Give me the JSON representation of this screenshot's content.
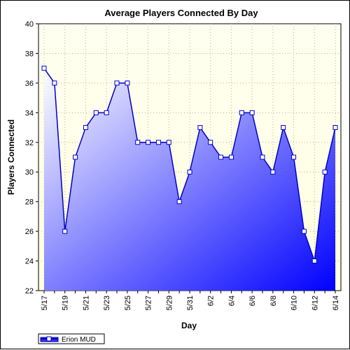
{
  "chart_data": {
    "type": "area",
    "title": "Average Players Connected By Day",
    "xlabel": "Day",
    "ylabel": "Players Connected",
    "ylim": [
      22,
      40
    ],
    "yticks": [
      22,
      24,
      26,
      28,
      30,
      32,
      34,
      36,
      38,
      40
    ],
    "x": [
      "5/17",
      "5/18",
      "5/19",
      "5/20",
      "5/21",
      "5/22",
      "5/23",
      "5/24",
      "5/25",
      "5/26",
      "5/27",
      "5/28",
      "5/29",
      "5/30",
      "5/31",
      "6/1",
      "6/2",
      "6/3",
      "6/4",
      "6/5",
      "6/6",
      "6/7",
      "6/8",
      "6/9",
      "6/10",
      "6/11",
      "6/12",
      "6/13",
      "6/14"
    ],
    "xtick_labels": [
      "5/17",
      "5/19",
      "5/21",
      "5/23",
      "5/25",
      "5/27",
      "5/29",
      "5/31",
      "6/2",
      "6/4",
      "6/6",
      "6/8",
      "6/10",
      "6/12",
      "6/14"
    ],
    "grid": true,
    "legend_position": "bottom-left",
    "series": [
      {
        "name": "Erion MUD",
        "values": [
          37,
          36,
          26,
          31,
          33,
          34,
          34,
          36,
          36,
          32,
          32,
          32,
          32,
          28,
          30,
          33,
          32,
          31,
          31,
          34,
          34,
          31,
          30,
          33,
          31,
          26,
          24,
          30,
          33
        ],
        "line_color": "#0000cc",
        "fill_top_color": "#ffffff",
        "fill_bottom_color": "#0000ff"
      }
    ],
    "plot_background": "#ffffe0"
  }
}
